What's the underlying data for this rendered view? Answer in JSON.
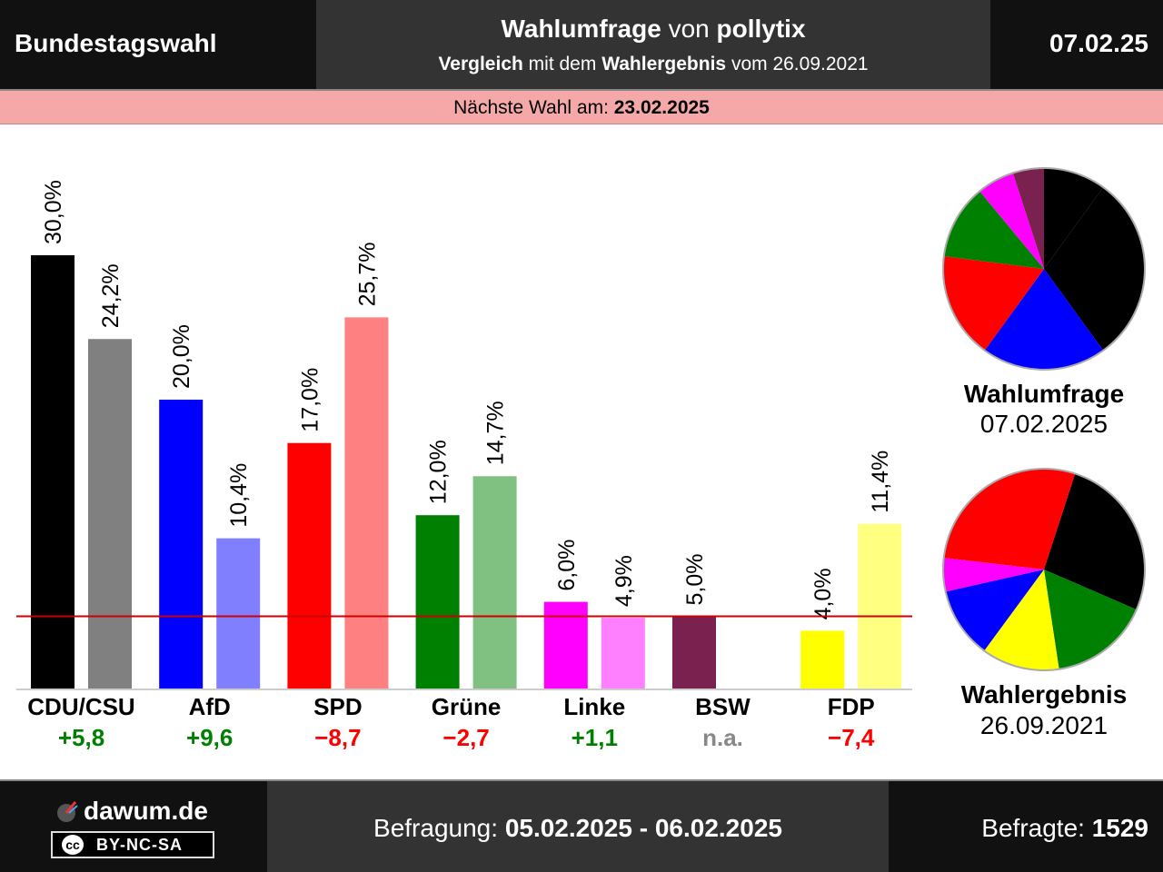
{
  "header": {
    "left_title": "Bundestagswahl",
    "title_bold1": "Wahlumfrage",
    "title_mid": " von ",
    "title_bold2": "pollytix",
    "sub_bold1": "Vergleich",
    "sub_mid": " mit dem ",
    "sub_bold2": "Wahlergebnis",
    "sub_end": " vom 26.09.2021",
    "date": "07.02.25"
  },
  "next_election": {
    "label": "Nächste Wahl am: ",
    "date": "23.02.2025"
  },
  "colors": {
    "threshold": "#cc0000"
  },
  "chart_data": {
    "type": "bar",
    "categories": [
      "CDU/CSU",
      "AfD",
      "SPD",
      "Grüne",
      "Linke",
      "BSW",
      "FDP"
    ],
    "series": [
      {
        "name": "Wahlumfrage",
        "values": [
          30.0,
          20.0,
          17.0,
          12.0,
          6.0,
          5.0,
          4.0
        ],
        "labels": [
          "30,0%",
          "20,0%",
          "17,0%",
          "12,0%",
          "6,0%",
          "5,0%",
          "4,0%"
        ],
        "colors": [
          "#000000",
          "#0000ff",
          "#ff0000",
          "#008000",
          "#ff00ff",
          "#7b2150",
          "#ffff00"
        ]
      },
      {
        "name": "Wahlergebnis",
        "values": [
          24.2,
          10.4,
          25.7,
          14.7,
          4.9,
          null,
          11.4
        ],
        "labels": [
          "24,2%",
          "10,4%",
          "25,7%",
          "14,7%",
          "4,9%",
          "",
          "11,4%"
        ],
        "colors": [
          "#808080",
          "#8080ff",
          "#ff8080",
          "#80c080",
          "#ff80ff",
          "#bd90a8",
          "#ffff80"
        ]
      }
    ],
    "differences": [
      "+5,8",
      "+9,6",
      "−8,7",
      "−2,7",
      "+1,1",
      "n.a.",
      "−7,4"
    ],
    "difference_colors": [
      "#008000",
      "#008000",
      "#ff0000",
      "#ff0000",
      "#008000",
      "#888888",
      "#ff0000"
    ],
    "threshold": 5,
    "ylim": [
      0,
      30
    ]
  },
  "pies": [
    {
      "title": "Wahlumfrage",
      "date": "07.02.2025",
      "values": [
        30.0,
        20.0,
        17.0,
        12.0,
        6.0,
        5.0,
        10.0
      ],
      "colors": [
        "#000000",
        "#0000ff",
        "#ff0000",
        "#008000",
        "#ff00ff",
        "#7b2150",
        "#000000"
      ]
    },
    {
      "title": "Wahlergebnis",
      "date": "26.09.2021",
      "values": [
        24.2,
        14.7,
        11.4,
        10.4,
        4.9,
        25.7
      ],
      "colors": [
        "#000000",
        "#008000",
        "#ffff00",
        "#0000ff",
        "#ff00ff",
        "#ff0000"
      ]
    }
  ],
  "footer": {
    "brand": "dawum.de",
    "license": "BY-NC-SA",
    "license_logo": "cc",
    "survey_label": "Befragung: ",
    "survey_dates": "05.02.2025 - 06.02.2025",
    "respondents_label": "Befragte: ",
    "respondents": "1529"
  }
}
